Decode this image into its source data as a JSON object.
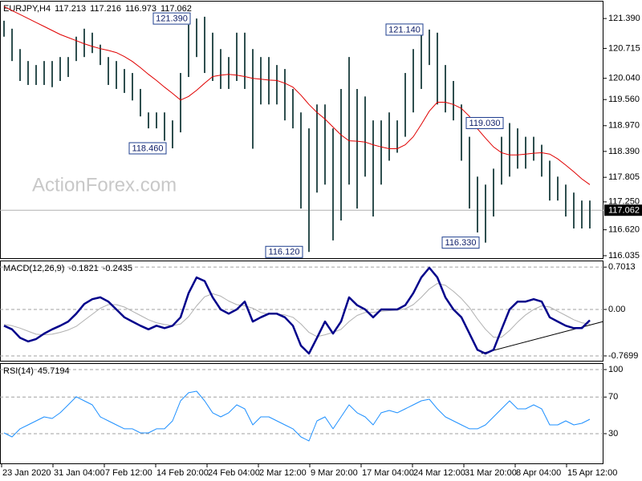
{
  "chart_data": [
    {
      "type": "ohlc",
      "title": "EURJPY,H4",
      "header_values": [
        117.213,
        117.216,
        116.973,
        117.062
      ],
      "last": 117.062,
      "watermark": "ActionForex.com",
      "color": "#2f4f4f",
      "high": [
        121.34,
        121.16,
        120.7,
        120.43,
        120.34,
        120.43,
        120.43,
        120.52,
        120.52,
        120.98,
        121.16,
        121.07,
        120.8,
        120.52,
        120.43,
        120.25,
        120.16,
        119.8,
        119.27,
        119.27,
        119.27,
        119.09,
        120.16,
        121.25,
        121.39,
        121.43,
        121.07,
        120.7,
        120.52,
        121.07,
        121.07,
        120.7,
        120.52,
        120.52,
        120.34,
        120.25,
        119.8,
        119.27,
        118.91,
        119.45,
        119.45,
        118.91,
        119.8,
        120.52,
        119.8,
        119.63,
        119.09,
        119.09,
        119.27,
        119.09,
        120.16,
        120.7,
        121.07,
        121.14,
        121.07,
        120.34,
        119.98,
        119.45,
        118.72,
        117.82,
        117.64,
        118.0,
        118.72,
        119.03,
        118.91,
        118.72,
        118.72,
        118.54,
        118.18,
        117.82,
        117.64,
        117.46,
        117.28,
        117.28
      ],
      "low": [
        120.98,
        120.43,
        119.98,
        119.89,
        119.89,
        119.89,
        119.84,
        119.98,
        120.07,
        120.43,
        120.52,
        120.61,
        120.34,
        119.89,
        119.8,
        119.71,
        119.54,
        119.18,
        118.91,
        118.91,
        118.63,
        118.46,
        118.82,
        120.07,
        120.52,
        120.16,
        119.98,
        119.8,
        119.8,
        119.98,
        119.8,
        118.45,
        119.45,
        119.45,
        119.45,
        119.09,
        118.91,
        117.1,
        116.12,
        117.46,
        117.64,
        116.38,
        116.83,
        117.64,
        117.1,
        117.82,
        116.92,
        117.64,
        118.18,
        118.36,
        118.72,
        119.27,
        119.8,
        120.34,
        119.45,
        119.27,
        119.09,
        118.18,
        117.1,
        116.56,
        116.33,
        116.92,
        117.64,
        117.82,
        118.0,
        118.0,
        118.18,
        117.82,
        117.28,
        117.28,
        116.92,
        116.65,
        116.65,
        116.65
      ],
      "ma": {
        "color": "#e00000",
        "values": [
          121.66,
          121.57,
          121.48,
          121.39,
          121.3,
          121.21,
          121.12,
          121.03,
          120.96,
          120.89,
          120.82,
          120.76,
          120.71,
          120.67,
          120.62,
          120.53,
          120.42,
          120.28,
          120.13,
          119.99,
          119.84,
          119.7,
          119.55,
          119.63,
          119.77,
          119.93,
          120.08,
          120.11,
          120.13,
          120.11,
          120.08,
          120.04,
          120.02,
          120.0,
          119.99,
          119.93,
          119.84,
          119.66,
          119.45,
          119.27,
          119.12,
          118.94,
          118.76,
          118.63,
          118.62,
          118.6,
          118.54,
          118.49,
          118.45,
          118.45,
          118.54,
          118.72,
          119.0,
          119.3,
          119.5,
          119.5,
          119.45,
          119.36,
          119.18,
          118.9,
          118.69,
          118.49,
          118.36,
          118.31,
          118.31,
          118.33,
          118.35,
          118.36,
          118.33,
          118.22,
          118.08,
          117.93,
          117.77,
          117.64
        ]
      },
      "annotations": [
        {
          "index": 24,
          "value": 121.39,
          "label": "121.390"
        },
        {
          "index": 21,
          "value": 118.46,
          "label": "118.460"
        },
        {
          "index": 38,
          "value": 116.12,
          "label": "116.120"
        },
        {
          "index": 53,
          "value": 121.14,
          "label": "121.140"
        },
        {
          "index": 63,
          "value": 119.03,
          "label": "119.030"
        },
        {
          "index": 60,
          "value": 116.33,
          "label": "116.330"
        }
      ],
      "xlim": [
        -0.5,
        74.7
      ],
      "ylim": [
        115.98,
        121.79
      ],
      "yticks": [
        {
          "value": 121.39,
          "label": "121.390"
        },
        120.715,
        {
          "value": 120.04,
          "label": "120.040"
        },
        {
          "value": 119.56,
          "label": "119.560"
        },
        {
          "value": 118.97,
          "label": "118.970"
        },
        {
          "value": 118.39,
          "label": "118.390"
        },
        117.805,
        {
          "value": 117.25,
          "label": "117.250"
        },
        {
          "value": 116.62,
          "label": "116.620"
        },
        116.035
      ],
      "grid": false
    },
    {
      "type": "line",
      "title": "MACD(12,26,9)",
      "header_values": [
        -0.1821,
        -0.2435
      ],
      "series": [
        {
          "color": "#00008b",
          "width": 2.5,
          "values": [
            -0.27,
            -0.33,
            -0.47,
            -0.53,
            -0.49,
            -0.4,
            -0.33,
            -0.27,
            -0.2,
            -0.07,
            0.09,
            0.17,
            0.2,
            0.13,
            0,
            -0.13,
            -0.2,
            -0.27,
            -0.33,
            -0.27,
            -0.31,
            -0.27,
            -0.13,
            0.27,
            0.53,
            0.47,
            0.2,
            0,
            -0.07,
            0,
            0.13,
            -0.2,
            -0.13,
            -0.07,
            -0.07,
            -0.13,
            -0.27,
            -0.6,
            -0.73,
            -0.47,
            -0.2,
            -0.4,
            -0.2,
            0.2,
            0.07,
            0,
            -0.13,
            0,
            0,
            0,
            0.07,
            0.27,
            0.53,
            0.69,
            0.53,
            0.2,
            0,
            -0.13,
            -0.4,
            -0.67,
            -0.73,
            -0.67,
            -0.33,
            0,
            0.13,
            0.13,
            0.17,
            0.13,
            -0.13,
            -0.2,
            -0.27,
            -0.31,
            -0.31,
            -0.18
          ]
        },
        {
          "color": "#b0b0b0",
          "width": 1,
          "values": [
            -0.25,
            -0.27,
            -0.31,
            -0.36,
            -0.41,
            -0.42,
            -0.41,
            -0.38,
            -0.34,
            -0.28,
            -0.18,
            -0.08,
            0.02,
            0.08,
            0.08,
            0.04,
            -0.03,
            -0.1,
            -0.17,
            -0.22,
            -0.25,
            -0.27,
            -0.24,
            -0.12,
            0.06,
            0.21,
            0.26,
            0.22,
            0.14,
            0.08,
            0.06,
            0.02,
            -0.05,
            -0.08,
            -0.08,
            -0.09,
            -0.13,
            -0.24,
            -0.38,
            -0.45,
            -0.42,
            -0.38,
            -0.33,
            -0.2,
            -0.1,
            -0.05,
            -0.05,
            -0.03,
            -0.02,
            -0.01,
            0.01,
            0.08,
            0.2,
            0.34,
            0.43,
            0.4,
            0.3,
            0.18,
            0.03,
            -0.16,
            -0.33,
            -0.46,
            -0.46,
            -0.35,
            -0.21,
            -0.09,
            0.0,
            0.06,
            0.04,
            -0.03,
            -0.1,
            -0.17,
            -0.22,
            -0.24
          ]
        }
      ],
      "xlim": [
        -0.5,
        74.7
      ],
      "ylim": [
        -0.85,
        0.81
      ],
      "yticks": [
        0.7013,
        {
          "value": 0,
          "label": "0.00"
        },
        -0.7699
      ],
      "grid": "dashed"
    },
    {
      "type": "line",
      "title": "RSI(14)",
      "header_values": [
        45.7194
      ],
      "series": [
        {
          "color": "#1e90ff",
          "width": 1,
          "values": [
            30.9,
            26.5,
            35.3,
            39.6,
            44.0,
            48.4,
            46.6,
            52.8,
            61.5,
            70.3,
            65.9,
            61.5,
            48.4,
            44.0,
            39.6,
            35.3,
            35.3,
            30.9,
            30.9,
            35.3,
            35.3,
            44.0,
            65.9,
            74.7,
            76.4,
            65.9,
            52.8,
            48.4,
            52.8,
            61.5,
            57.1,
            39.6,
            48.4,
            48.4,
            44.0,
            39.6,
            35.3,
            26.5,
            22.1,
            44.0,
            48.4,
            35.3,
            48.4,
            61.5,
            52.8,
            48.4,
            39.6,
            52.8,
            55.4,
            52.8,
            57.1,
            61.5,
            65.9,
            67.6,
            57.1,
            48.4,
            44.0,
            39.6,
            35.3,
            35.3,
            39.6,
            48.4,
            57.1,
            65.9,
            57.1,
            57.1,
            61.5,
            57.1,
            39.6,
            39.6,
            44.0,
            39.6,
            41.4,
            45.7
          ]
        }
      ],
      "xlim": [
        -0.5,
        74.7
      ],
      "ylim": [
        -2.4,
        107
      ],
      "yticks": [
        100,
        70,
        30
      ],
      "grid": "dashed",
      "xticks": [
        {
          "value": -0.3,
          "label": "23 Jan 2020"
        },
        {
          "value": 6.1,
          "label": "31 Jan 04:00"
        },
        {
          "value": 12.5,
          "label": "7 Feb 12:00"
        },
        {
          "value": 18.9,
          "label": "14 Feb 20:00"
        },
        {
          "value": 25.3,
          "label": "24 Feb 04:00"
        },
        {
          "value": 31.7,
          "label": "2 Mar 12:00"
        },
        {
          "value": 38.1,
          "label": "9 Mar 20:00"
        },
        {
          "value": 44.5,
          "label": "17 Mar 04:00"
        },
        {
          "value": 50.9,
          "label": "24 Mar 12:00"
        },
        {
          "value": 57.3,
          "label": "31 Mar 20:00"
        },
        {
          "value": 63.7,
          "label": "8 Apr 04:00"
        },
        {
          "value": 70.1,
          "label": "15 Apr 12:00"
        }
      ]
    }
  ]
}
